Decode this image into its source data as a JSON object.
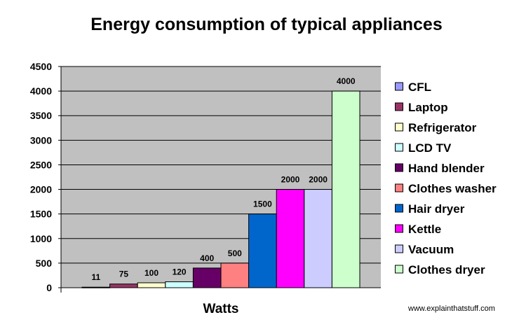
{
  "chart_data": {
    "type": "bar",
    "title": "Energy consumption of typical appliances",
    "xlabel": "Watts",
    "ylabel": "",
    "ylim": [
      0,
      4500
    ],
    "yticks": [
      0,
      500,
      1000,
      1500,
      2000,
      2500,
      3000,
      3500,
      4000,
      4500
    ],
    "grid": true,
    "legend_position": "right",
    "series": [
      {
        "name": "CFL",
        "value": 11,
        "color": "#9999ff"
      },
      {
        "name": "Laptop",
        "value": 75,
        "color": "#993366"
      },
      {
        "name": "Refrigerator",
        "value": 100,
        "color": "#ffffcc"
      },
      {
        "name": "LCD TV",
        "value": 120,
        "color": "#ccffff"
      },
      {
        "name": "Hand blender",
        "value": 400,
        "color": "#660066"
      },
      {
        "name": "Clothes washer",
        "value": 500,
        "color": "#ff8080"
      },
      {
        "name": "Hair dryer",
        "value": 1500,
        "color": "#0066cc"
      },
      {
        "name": "Kettle",
        "value": 2000,
        "color": "#ff00ff"
      },
      {
        "name": "Vacuum",
        "value": 2000,
        "color": "#ccccff"
      },
      {
        "name": "Clothes dryer",
        "value": 4000,
        "color": "#ccffcc"
      }
    ]
  },
  "credit": "www.explainthatstuff.com"
}
